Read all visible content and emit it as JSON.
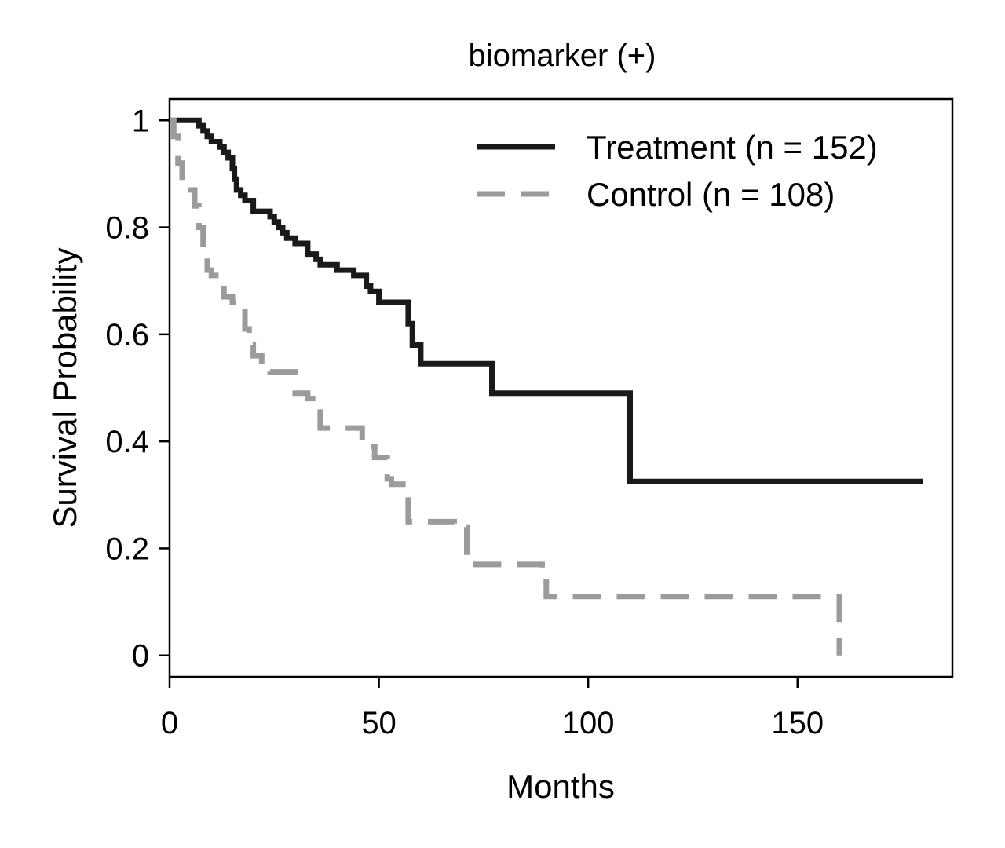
{
  "chart_data": {
    "type": "line",
    "subtype": "kaplan-meier step",
    "title": "biomarker (+)",
    "xlabel": "Months",
    "ylabel": "Survival Probability",
    "xlim": [
      0,
      187
    ],
    "ylim": [
      -0.04,
      1.04
    ],
    "xticks": [
      0,
      50,
      100,
      150
    ],
    "xtick_labels": [
      "0",
      "50",
      "100",
      "150"
    ],
    "yticks": [
      0,
      0.2,
      0.4,
      0.6,
      0.8,
      1
    ],
    "ytick_labels": [
      "0",
      "0.2",
      "0.4",
      "0.6",
      "0.8",
      "1"
    ],
    "grid": false,
    "legend_position": "top-right",
    "series": [
      {
        "name": "Treatment (n = 152)",
        "color": "#1a1a1a",
        "dash": "solid",
        "x": [
          0,
          7,
          8,
          9,
          10,
          12,
          13,
          14,
          15,
          15.5,
          16,
          17,
          18,
          20,
          22,
          24,
          25,
          26,
          27,
          28,
          30,
          32,
          33,
          35,
          36,
          39,
          40,
          42,
          44,
          46,
          47,
          48,
          50,
          52,
          57,
          58,
          60,
          76,
          77,
          109,
          110,
          180
        ],
        "y": [
          1,
          0.99,
          0.98,
          0.97,
          0.96,
          0.95,
          0.94,
          0.93,
          0.91,
          0.89,
          0.87,
          0.86,
          0.85,
          0.83,
          0.83,
          0.82,
          0.81,
          0.8,
          0.79,
          0.78,
          0.77,
          0.77,
          0.75,
          0.74,
          0.73,
          0.73,
          0.72,
          0.72,
          0.71,
          0.71,
          0.69,
          0.68,
          0.66,
          0.66,
          0.62,
          0.58,
          0.545,
          0.545,
          0.49,
          0.49,
          0.325,
          0.325
        ]
      },
      {
        "name": "Control (n = 108)",
        "color": "#9b9b9b",
        "dash": "dashed",
        "x": [
          0,
          1,
          2,
          3,
          5,
          6,
          7,
          8,
          9,
          10,
          12,
          13,
          14,
          15,
          17,
          18,
          19,
          20,
          22,
          24,
          26,
          30,
          32,
          33,
          36,
          41,
          46,
          47,
          49,
          52,
          53,
          57,
          62,
          68,
          71,
          72,
          78,
          89,
          90,
          158,
          160
        ],
        "y": [
          1,
          0.97,
          0.92,
          0.88,
          0.87,
          0.84,
          0.8,
          0.76,
          0.72,
          0.71,
          0.7,
          0.67,
          0.67,
          0.66,
          0.65,
          0.61,
          0.58,
          0.56,
          0.535,
          0.53,
          0.53,
          0.49,
          0.49,
          0.48,
          0.425,
          0.425,
          0.4,
          0.39,
          0.37,
          0.33,
          0.32,
          0.25,
          0.25,
          0.24,
          0.17,
          0.17,
          0.17,
          0.15,
          0.11,
          0.11,
          0
        ]
      }
    ]
  }
}
